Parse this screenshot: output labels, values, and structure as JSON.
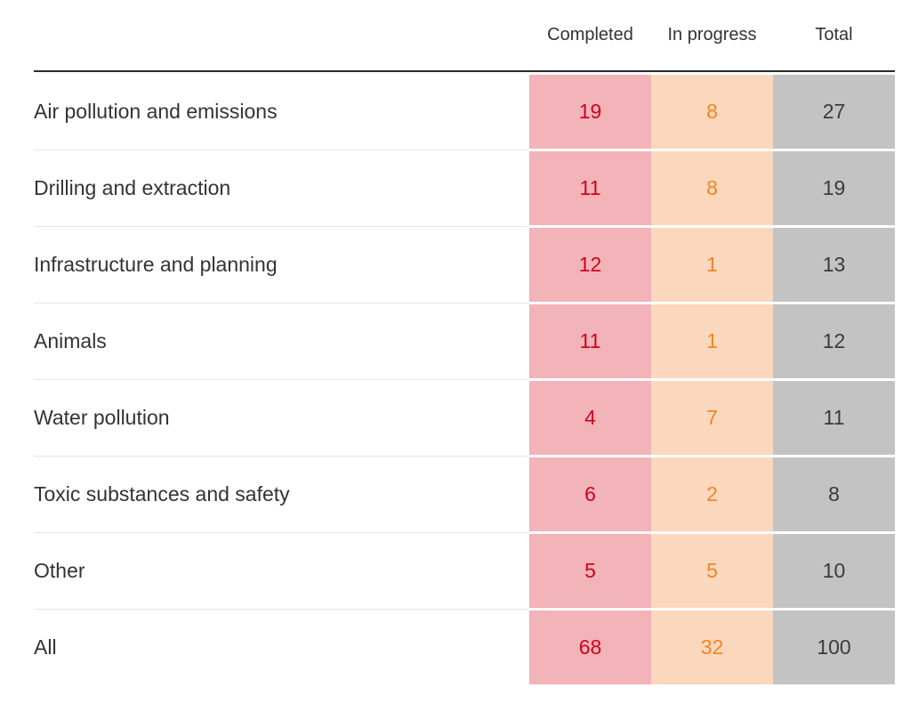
{
  "chart_data": {
    "type": "table",
    "columns": [
      "Completed",
      "In progress",
      "Total"
    ],
    "categories": [
      "Air pollution and emissions",
      "Drilling and extraction",
      "Infrastructure and planning",
      "Animals",
      "Water pollution",
      "Toxic substances and safety",
      "Other",
      "All"
    ],
    "series": [
      {
        "name": "Completed",
        "values": [
          19,
          11,
          12,
          11,
          4,
          6,
          5,
          68
        ]
      },
      {
        "name": "In progress",
        "values": [
          8,
          8,
          1,
          1,
          7,
          2,
          5,
          32
        ]
      },
      {
        "name": "Total",
        "values": [
          27,
          19,
          13,
          12,
          11,
          8,
          10,
          100
        ]
      }
    ],
    "layout_hints": {
      "last_row_is_summary": true,
      "value_columns_highlighted": true,
      "grid": "horizontal-dividers"
    }
  },
  "colors": {
    "completed_bg": "#f2b3b9",
    "completed_text": "#d0021b",
    "in_progress_bg": "#fbd8bd",
    "in_progress_text": "#f18523",
    "total_bg": "#c3c3c3",
    "total_text": "#3b3b3b",
    "header_rule": "#2b2b2b",
    "row_divider": "#e5e5e5",
    "label_text": "#333333"
  }
}
